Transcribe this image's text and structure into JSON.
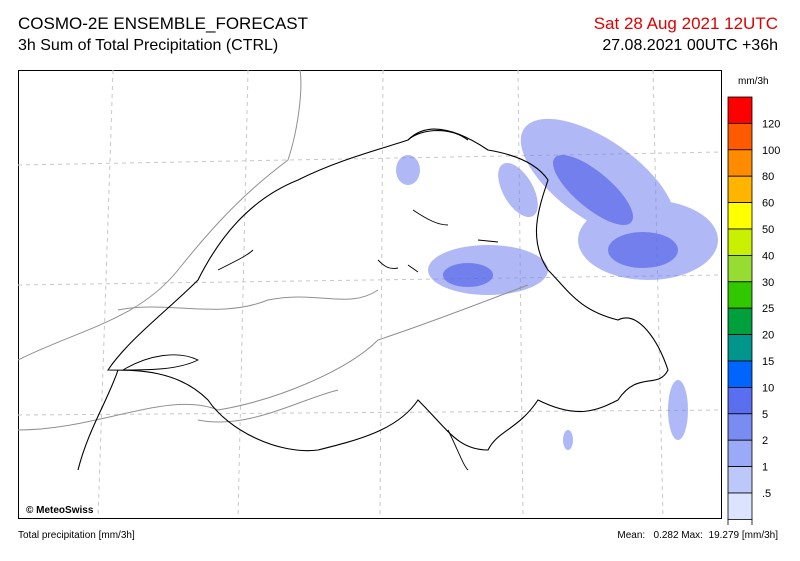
{
  "header": {
    "title": "COSMO-2E ENSEMBLE_FORECAST",
    "subtitle": "3h Sum of Total Precipitation (CTRL)",
    "valid_time": "Sat 28 Aug 2021 12UTC",
    "run_time": "27.08.2021 00UTC +36h"
  },
  "map": {
    "credit": "© MeteoSwiss"
  },
  "legend": {
    "unit": "mm/3h",
    "labels": [
      "120",
      "100",
      "80",
      "60",
      "50",
      "40",
      "30",
      "25",
      "20",
      "15",
      "10",
      "5",
      "2",
      "1",
      ".5"
    ],
    "colors": [
      "#ff0000",
      "#ff5a00",
      "#ff8c00",
      "#ffb400",
      "#ffff00",
      "#c8f000",
      "#96dc32",
      "#32c800",
      "#00a03c",
      "#00968c",
      "#0064ff",
      "#5a6ef0",
      "#7a8cf2",
      "#9aaaf6",
      "#bcc8fa",
      "#dce4fd",
      "#ffffff"
    ]
  },
  "footer": {
    "left": "Total precipitation [mm/3h]",
    "stats": "Mean:   0.282 Max:  19.279 [mm/3h]"
  }
}
